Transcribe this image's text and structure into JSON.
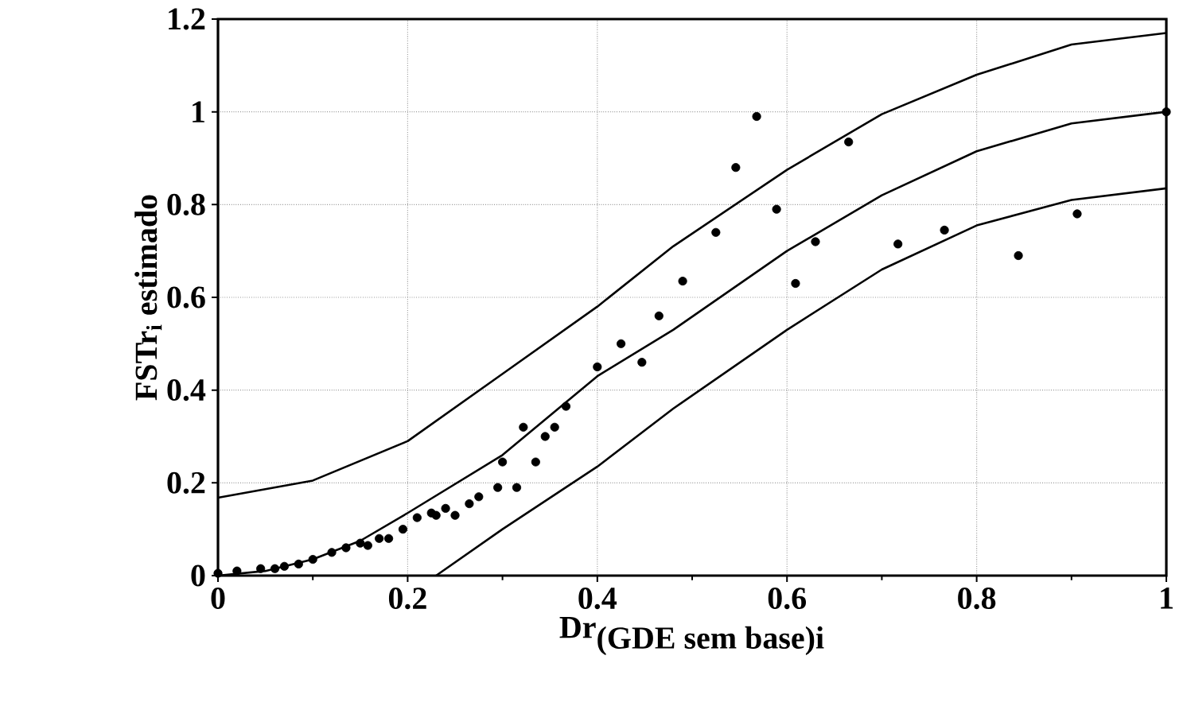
{
  "chart_data": {
    "type": "scatter",
    "xlabel": "\\textbf{Dr}_{\\textbf{(GDE sem base)i}}",
    "ylabel": "FSTr$_{i}$ estimado",
    "xlim": [
      0,
      1
    ],
    "ylim": [
      0,
      1.2
    ],
    "xticks": [
      0,
      0.2,
      0.4,
      0.6,
      0.8,
      1
    ],
    "yticks": [
      0,
      0.2,
      0.4,
      0.6,
      0.8,
      1,
      1.2
    ],
    "grid": true,
    "series": [
      {
        "marker": "circle",
        "color": "#000000",
        "x": [
          0.0,
          0.02,
          0.045,
          0.06,
          0.07,
          0.085,
          0.1,
          0.12,
          0.135,
          0.15,
          0.158,
          0.17,
          0.18,
          0.195,
          0.21,
          0.225,
          0.23,
          0.24,
          0.25,
          0.265,
          0.275,
          0.295,
          0.3,
          0.315,
          0.322,
          0.335,
          0.345,
          0.355,
          0.367,
          0.4,
          0.425,
          0.447,
          0.465,
          0.49,
          0.525,
          0.546,
          0.568,
          0.589,
          0.609,
          0.63,
          0.665,
          0.717,
          0.766,
          0.844,
          0.906,
          1.0
        ],
        "values": [
          0.005,
          0.01,
          0.015,
          0.015,
          0.02,
          0.025,
          0.035,
          0.05,
          0.06,
          0.07,
          0.065,
          0.08,
          0.08,
          0.1,
          0.125,
          0.135,
          0.13,
          0.145,
          0.13,
          0.155,
          0.17,
          0.19,
          0.245,
          0.19,
          0.32,
          0.245,
          0.3,
          0.32,
          0.365,
          0.45,
          0.5,
          0.46,
          0.56,
          0.635,
          0.74,
          0.88,
          0.99,
          0.79,
          0.63,
          0.72,
          0.935,
          0.715,
          0.745,
          0.69,
          0.78,
          1.0
        ]
      },
      {
        "type": "line",
        "marker": "none",
        "line_style": "solid",
        "color": "#000000",
        "x": [
          0,
          0.05,
          0.1,
          0.15,
          0.2,
          0.3,
          0.4,
          0.48,
          0.6,
          0.7,
          0.8,
          0.9,
          1.0
        ],
        "values": [
          0,
          0.01,
          0.035,
          0.075,
          0.135,
          0.26,
          0.43,
          0.53,
          0.7,
          0.82,
          0.915,
          0.975,
          1.0
        ]
      },
      {
        "type": "line",
        "marker": "none",
        "line_style": "solid",
        "color": "#000000",
        "x": [
          0,
          0.1,
          0.2,
          0.3,
          0.4,
          0.48,
          0.6,
          0.7,
          0.8,
          0.9,
          1.0
        ],
        "values": [
          0.168,
          0.205,
          0.29,
          0.435,
          0.58,
          0.71,
          0.875,
          0.995,
          1.08,
          1.145,
          1.17
        ]
      },
      {
        "type": "line",
        "marker": "none",
        "line_style": "solid",
        "color": "#000000",
        "x": [
          0.23,
          0.3,
          0.4,
          0.48,
          0.6,
          0.7,
          0.8,
          0.9,
          1.0
        ],
        "values": [
          0,
          0.1,
          0.235,
          0.36,
          0.53,
          0.66,
          0.755,
          0.81,
          0.835
        ]
      }
    ]
  }
}
